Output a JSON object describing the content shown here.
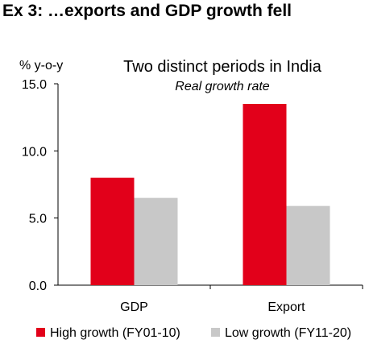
{
  "exhibit_title": "Ex 3: …exports and GDP growth fell",
  "chart_data": {
    "type": "bar",
    "title": "Two distinct periods in India",
    "subtitle": "Real growth rate",
    "ylabel": "% y-o-y",
    "xlabel": "",
    "categories": [
      "GDP",
      "Export"
    ],
    "series": [
      {
        "name": "High growth (FY01-10)",
        "values": [
          8.0,
          13.5
        ],
        "color": "#e2001a"
      },
      {
        "name": "Low growth (FY11-20)",
        "values": [
          6.5,
          5.9
        ],
        "color": "#c8c8c8"
      }
    ],
    "ylim": [
      0,
      15
    ],
    "yticks": [
      "0.0",
      "5.0",
      "10.0",
      "15.0"
    ],
    "ytick_values": [
      0,
      5,
      10,
      15
    ],
    "grid": false,
    "legend_position": "bottom"
  }
}
